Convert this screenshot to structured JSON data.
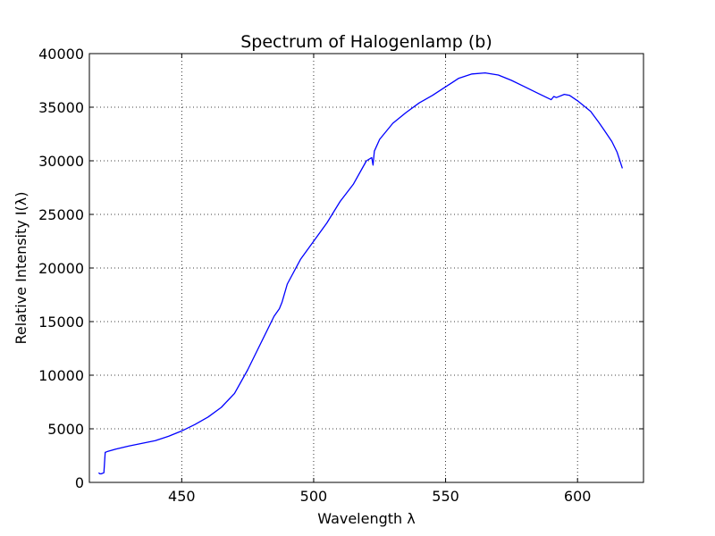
{
  "chart_data": {
    "type": "line",
    "title": "Spectrum of Halogenlamp (b)",
    "xlabel": "Wavelength λ",
    "ylabel": "Relative Intensity I(λ)",
    "xlim": [
      415,
      625
    ],
    "ylim": [
      0,
      40000
    ],
    "x_ticks": [
      450,
      500,
      550,
      600
    ],
    "y_ticks": [
      0,
      5000,
      10000,
      15000,
      20000,
      25000,
      30000,
      35000,
      40000
    ],
    "grid": true,
    "line_color": "#0000ff",
    "series": [
      {
        "x": [
          418.5,
          419.0,
          419.5,
          420.5,
          421.0,
          421.5,
          422.0,
          425.0,
          430.0,
          435.0,
          440.0,
          445.0,
          450.0,
          455.0,
          460.0,
          465.0,
          470.0,
          475.0,
          480.0,
          485.0,
          487.0,
          488.0,
          490.0,
          495.0,
          500.0,
          505.0,
          510.0,
          515.0,
          520.0,
          522.0,
          522.5,
          523.0,
          525.0,
          530.0,
          535.0,
          540.0,
          545.0,
          550.0,
          555.0,
          560.0,
          565.0,
          570.0,
          575.0,
          580.0,
          585.0,
          590.0,
          591.0,
          592.0,
          595.0,
          597.0,
          600.0,
          605.0,
          608.0,
          610.0,
          613.0,
          615.0,
          617.0
        ],
        "y": [
          900,
          800,
          800,
          900,
          2800,
          2850,
          2900,
          3100,
          3400,
          3650,
          3900,
          4300,
          4800,
          5400,
          6100,
          7000,
          8300,
          10500,
          13000,
          15500,
          16200,
          16800,
          18500,
          20800,
          22500,
          24200,
          26200,
          27800,
          30000,
          30300,
          29600,
          30900,
          32000,
          33500,
          34500,
          35400,
          36100,
          36900,
          37700,
          38100,
          38200,
          38000,
          37500,
          36900,
          36300,
          35700,
          36000,
          35900,
          36200,
          36100,
          35600,
          34600,
          33600,
          32900,
          31800,
          30800,
          29300
        ]
      }
    ]
  }
}
